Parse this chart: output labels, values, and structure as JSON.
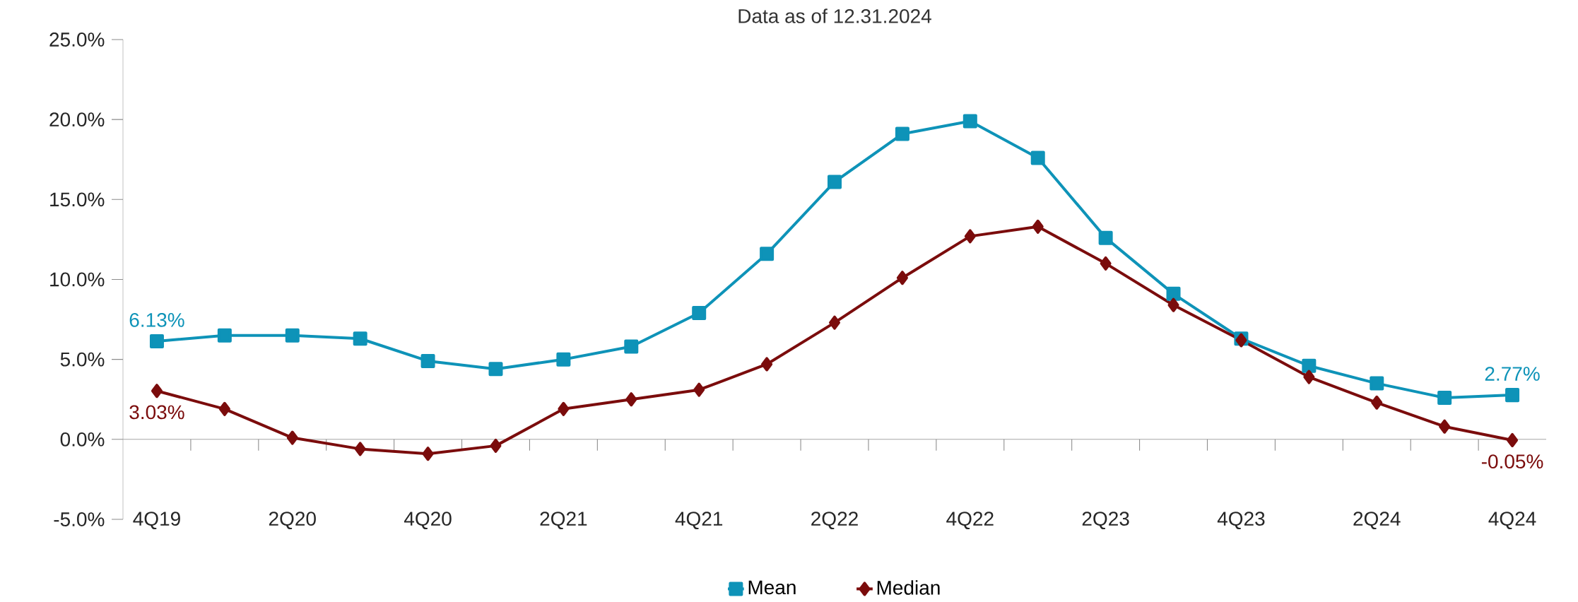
{
  "chart_data": {
    "type": "line",
    "subtitle": "Data as of 12.31.2024",
    "categories": [
      "4Q19",
      null,
      "2Q20",
      null,
      "4Q20",
      null,
      "2Q21",
      null,
      "4Q21",
      null,
      "2Q22",
      null,
      "4Q22",
      null,
      "2Q23",
      null,
      "4Q23",
      null,
      "2Q24",
      null,
      "4Q24"
    ],
    "series": [
      {
        "name": "Mean",
        "color": "#0e93b8",
        "marker": "square",
        "values": [
          6.13,
          6.5,
          6.5,
          6.3,
          4.9,
          4.4,
          5.0,
          5.8,
          7.9,
          11.6,
          16.1,
          19.1,
          19.9,
          17.6,
          12.6,
          9.1,
          6.3,
          4.6,
          3.5,
          2.6,
          2.77
        ],
        "value_labels": [
          "6.13%",
          null,
          null,
          null,
          null,
          null,
          null,
          null,
          null,
          null,
          null,
          null,
          null,
          null,
          null,
          null,
          null,
          null,
          null,
          null,
          "2.77%"
        ]
      },
      {
        "name": "Median",
        "color": "#7b0c0c",
        "marker": "diamond",
        "values": [
          3.03,
          1.9,
          0.1,
          -0.6,
          -0.9,
          -0.4,
          1.9,
          2.5,
          3.1,
          4.7,
          7.3,
          10.1,
          12.7,
          13.3,
          11.0,
          8.4,
          6.2,
          3.9,
          2.3,
          0.8,
          -0.05
        ],
        "value_labels": [
          "3.03%",
          null,
          null,
          null,
          null,
          null,
          null,
          null,
          null,
          null,
          null,
          null,
          null,
          null,
          null,
          null,
          null,
          null,
          null,
          null,
          "-0.05%"
        ]
      }
    ],
    "ylim": [
      -5,
      25
    ],
    "yticks": [
      {
        "value": -5,
        "label": "-5.0%"
      },
      {
        "value": 0,
        "label": "0.0%"
      },
      {
        "value": 5,
        "label": "5.0%"
      },
      {
        "value": 10,
        "label": "10.0%"
      },
      {
        "value": 15,
        "label": "15.0%"
      },
      {
        "value": 20,
        "label": "20.0%"
      },
      {
        "value": 25,
        "label": "25.0%"
      }
    ],
    "ref_lines": [
      {
        "axis": "y",
        "value": 0,
        "color": "#a6a6a6"
      }
    ],
    "grid": false,
    "legend": "bottom",
    "line_style": "solid"
  }
}
